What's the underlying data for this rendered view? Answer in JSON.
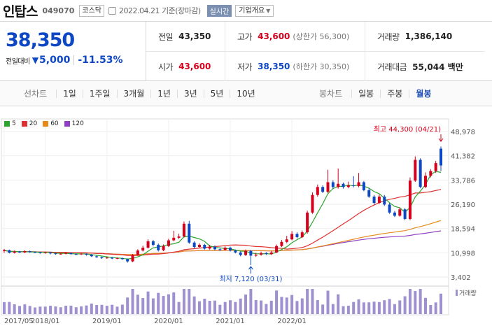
{
  "header": {
    "name": "인탑스",
    "code": "049070",
    "market": "코스닥",
    "date": "2022.04.21 기준(장마감)",
    "realtime": "실시간",
    "company_info": "기업개요"
  },
  "price": {
    "current": "38,350",
    "change_label": "전일대비",
    "change": "5,000",
    "change_pct": "-11.53%"
  },
  "stats": [
    {
      "label": "전일",
      "value": "43,350",
      "tone": "",
      "sub": ""
    },
    {
      "label": "고가",
      "value": "43,600",
      "tone": "up",
      "sub": "(상한가 56,300)"
    },
    {
      "label": "거래량",
      "value": "1,386,140",
      "tone": "",
      "sub": ""
    },
    {
      "label": "시가",
      "value": "43,600",
      "tone": "up",
      "sub": ""
    },
    {
      "label": "저가",
      "value": "38,350",
      "tone": "dn",
      "sub": "(하한가 30,350)"
    },
    {
      "label": "거래대금",
      "value": "55,044 백만",
      "tone": "",
      "sub": ""
    }
  ],
  "tabs": {
    "line_label": "선차트",
    "line_tabs": [
      "1일",
      "1주일",
      "3개월",
      "1년",
      "3년",
      "5년",
      "10년"
    ],
    "candle_label": "봉차트",
    "candle_tabs": [
      "일봉",
      "주봉",
      "월봉"
    ],
    "active_candle": "월봉"
  },
  "colors": {
    "up": "#d6001c",
    "down": "#0d47c4",
    "ma5": "#2ea52e",
    "ma20": "#e03030",
    "ma60": "#e88a1a",
    "ma120": "#9040c0",
    "volume": "#9f90d0"
  },
  "legend": [
    {
      "label": "5",
      "color": "#2ea52e"
    },
    {
      "label": "20",
      "color": "#e03030"
    },
    {
      "label": "60",
      "color": "#e88a1a"
    },
    {
      "label": "120",
      "color": "#9040c0"
    }
  ],
  "chart_data": {
    "type": "candlestick",
    "y_ticks": [
      "48,978",
      "41,382",
      "33,786",
      "26,190",
      "18,594",
      "10,998",
      "3,402"
    ],
    "ylim": [
      3402,
      48978
    ],
    "x_labels": [
      "2017/05",
      "2018/01",
      "2019/01",
      "2020/01",
      "2021/01",
      "2022/01"
    ],
    "high_annotation": "최고 44,300 (04/21)",
    "low_annotation": "최저 7,120 (03/31)",
    "volume_label": "거래량",
    "candles": [
      {
        "o": 11500,
        "c": 11800,
        "h": 12200,
        "l": 11000
      },
      {
        "o": 11800,
        "c": 11000,
        "h": 12000,
        "l": 10800
      },
      {
        "o": 11000,
        "c": 11400,
        "h": 11700,
        "l": 10800
      },
      {
        "o": 11400,
        "c": 11100,
        "h": 11600,
        "l": 10900
      },
      {
        "o": 11100,
        "c": 11500,
        "h": 11800,
        "l": 10900
      },
      {
        "o": 11500,
        "c": 11200,
        "h": 11700,
        "l": 11000
      },
      {
        "o": 11200,
        "c": 11100,
        "h": 11400,
        "l": 10900
      },
      {
        "o": 11100,
        "c": 10900,
        "h": 11300,
        "l": 10700
      },
      {
        "o": 10900,
        "c": 11100,
        "h": 11300,
        "l": 10700
      },
      {
        "o": 11100,
        "c": 10800,
        "h": 11200,
        "l": 10500
      },
      {
        "o": 10800,
        "c": 10600,
        "h": 11000,
        "l": 10400
      },
      {
        "o": 10600,
        "c": 10700,
        "h": 10900,
        "l": 10400
      },
      {
        "o": 10700,
        "c": 10900,
        "h": 11200,
        "l": 10500
      },
      {
        "o": 10900,
        "c": 10600,
        "h": 11100,
        "l": 10400
      },
      {
        "o": 10600,
        "c": 10500,
        "h": 10800,
        "l": 10300
      },
      {
        "o": 10500,
        "c": 10700,
        "h": 10900,
        "l": 10300
      },
      {
        "o": 10700,
        "c": 10400,
        "h": 10800,
        "l": 10100
      },
      {
        "o": 10400,
        "c": 9900,
        "h": 10600,
        "l": 9700
      },
      {
        "o": 9900,
        "c": 9600,
        "h": 10100,
        "l": 9400
      },
      {
        "o": 9600,
        "c": 9300,
        "h": 9800,
        "l": 9100
      },
      {
        "o": 9300,
        "c": 9500,
        "h": 9700,
        "l": 9100
      },
      {
        "o": 9500,
        "c": 9200,
        "h": 9700,
        "l": 9000
      },
      {
        "o": 9200,
        "c": 9300,
        "h": 9500,
        "l": 9000
      },
      {
        "o": 9300,
        "c": 9000,
        "h": 9500,
        "l": 8800
      },
      {
        "o": 9000,
        "c": 8300,
        "h": 9200,
        "l": 7900
      },
      {
        "o": 8300,
        "c": 10300,
        "h": 10600,
        "l": 8100
      },
      {
        "o": 10300,
        "c": 11700,
        "h": 12100,
        "l": 10100
      },
      {
        "o": 11700,
        "c": 12600,
        "h": 13200,
        "l": 11400
      },
      {
        "o": 12600,
        "c": 14600,
        "h": 15200,
        "l": 12300
      },
      {
        "o": 14600,
        "c": 13500,
        "h": 15000,
        "l": 13000
      },
      {
        "o": 13500,
        "c": 11800,
        "h": 13900,
        "l": 11400
      },
      {
        "o": 11800,
        "c": 13100,
        "h": 13600,
        "l": 11500
      },
      {
        "o": 13100,
        "c": 14900,
        "h": 15400,
        "l": 12800
      },
      {
        "o": 14900,
        "c": 15700,
        "h": 17900,
        "l": 14600
      },
      {
        "o": 15700,
        "c": 16100,
        "h": 17000,
        "l": 15300
      },
      {
        "o": 16100,
        "c": 20100,
        "h": 20800,
        "l": 15800
      },
      {
        "o": 20100,
        "c": 14200,
        "h": 21000,
        "l": 13800
      },
      {
        "o": 14200,
        "c": 12800,
        "h": 14600,
        "l": 12400
      },
      {
        "o": 12800,
        "c": 13500,
        "h": 14000,
        "l": 12500
      },
      {
        "o": 13500,
        "c": 12300,
        "h": 13800,
        "l": 12000
      },
      {
        "o": 12300,
        "c": 12900,
        "h": 13500,
        "l": 12000
      },
      {
        "o": 12900,
        "c": 12100,
        "h": 13300,
        "l": 11800
      },
      {
        "o": 12100,
        "c": 11900,
        "h": 12500,
        "l": 11600
      },
      {
        "o": 11900,
        "c": 12600,
        "h": 13000,
        "l": 11700
      },
      {
        "o": 12600,
        "c": 11700,
        "h": 12900,
        "l": 11400
      },
      {
        "o": 11700,
        "c": 11100,
        "h": 12000,
        "l": 10800
      },
      {
        "o": 11100,
        "c": 10300,
        "h": 11400,
        "l": 9900
      },
      {
        "o": 10300,
        "c": 11600,
        "h": 12000,
        "l": 10000
      },
      {
        "o": 11600,
        "c": 10100,
        "h": 11900,
        "l": 7120
      },
      {
        "o": 10100,
        "c": 10400,
        "h": 11000,
        "l": 9700
      },
      {
        "o": 10400,
        "c": 10900,
        "h": 11400,
        "l": 10100
      },
      {
        "o": 10900,
        "c": 10600,
        "h": 11200,
        "l": 10300
      },
      {
        "o": 10600,
        "c": 11100,
        "h": 11600,
        "l": 10300
      },
      {
        "o": 11100,
        "c": 13100,
        "h": 13600,
        "l": 10900
      },
      {
        "o": 13100,
        "c": 14400,
        "h": 15000,
        "l": 12800
      },
      {
        "o": 14400,
        "c": 15200,
        "h": 16300,
        "l": 14000
      },
      {
        "o": 15200,
        "c": 16900,
        "h": 17800,
        "l": 14900
      },
      {
        "o": 16900,
        "c": 15900,
        "h": 17400,
        "l": 15500
      },
      {
        "o": 15900,
        "c": 17400,
        "h": 18000,
        "l": 15600
      },
      {
        "o": 17400,
        "c": 23600,
        "h": 24200,
        "l": 17000
      },
      {
        "o": 23600,
        "c": 29100,
        "h": 29900,
        "l": 23200
      },
      {
        "o": 29100,
        "c": 31600,
        "h": 32400,
        "l": 28600
      },
      {
        "o": 31600,
        "c": 30100,
        "h": 32100,
        "l": 29700
      },
      {
        "o": 30100,
        "c": 33100,
        "h": 37000,
        "l": 29700
      },
      {
        "o": 33100,
        "c": 31600,
        "h": 33700,
        "l": 31000
      },
      {
        "o": 31600,
        "c": 32600,
        "h": 37400,
        "l": 31100
      },
      {
        "o": 32600,
        "c": 31600,
        "h": 33000,
        "l": 31100
      },
      {
        "o": 31600,
        "c": 32100,
        "h": 33300,
        "l": 31200
      },
      {
        "o": 32100,
        "c": 31900,
        "h": 35000,
        "l": 31500
      },
      {
        "o": 31900,
        "c": 33100,
        "h": 36000,
        "l": 31500
      },
      {
        "o": 33100,
        "c": 30600,
        "h": 33500,
        "l": 30300
      },
      {
        "o": 30600,
        "c": 28600,
        "h": 31200,
        "l": 28200
      },
      {
        "o": 28600,
        "c": 26600,
        "h": 29100,
        "l": 26100
      },
      {
        "o": 26600,
        "c": 28600,
        "h": 29200,
        "l": 26300
      },
      {
        "o": 28600,
        "c": 26100,
        "h": 29100,
        "l": 25700
      },
      {
        "o": 26100,
        "c": 23600,
        "h": 26600,
        "l": 23200
      },
      {
        "o": 23600,
        "c": 22600,
        "h": 24100,
        "l": 22200
      },
      {
        "o": 22600,
        "c": 24600,
        "h": 25200,
        "l": 22300
      },
      {
        "o": 24600,
        "c": 21600,
        "h": 25000,
        "l": 21200
      },
      {
        "o": 21600,
        "c": 33600,
        "h": 34600,
        "l": 21200
      },
      {
        "o": 33600,
        "c": 40100,
        "h": 41200,
        "l": 33200
      },
      {
        "o": 40100,
        "c": 31600,
        "h": 40600,
        "l": 31200
      },
      {
        "o": 31600,
        "c": 35100,
        "h": 36200,
        "l": 31200
      },
      {
        "o": 35100,
        "c": 36600,
        "h": 37200,
        "l": 34600
      },
      {
        "o": 36600,
        "c": 39100,
        "h": 39800,
        "l": 36000
      },
      {
        "o": 43600,
        "c": 38350,
        "h": 44300,
        "l": 36600
      }
    ]
  }
}
